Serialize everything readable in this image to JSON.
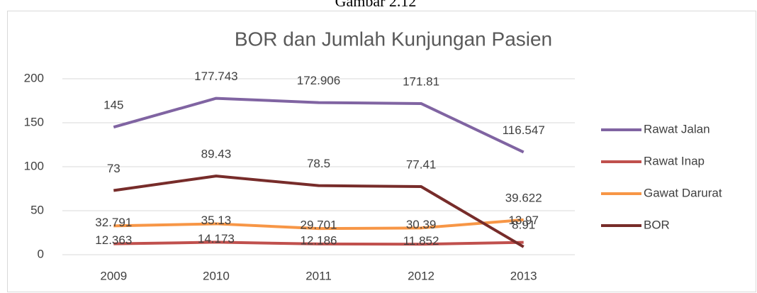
{
  "caption": "Gambar 2.12",
  "chart_data": {
    "type": "line",
    "title": "BOR dan Jumlah Kunjungan Pasien",
    "categories": [
      "2009",
      "2010",
      "2011",
      "2012",
      "2013"
    ],
    "series": [
      {
        "name": "Rawat Jalan",
        "color": "#8064a2",
        "values": [
          145,
          177.743,
          172.906,
          171.81,
          116.547
        ]
      },
      {
        "name": "Rawat Inap",
        "color": "#c0504d",
        "values": [
          12.363,
          14.173,
          12.186,
          11.852,
          13.97
        ]
      },
      {
        "name": "Gawat Darurat",
        "color": "#f79646",
        "values": [
          32.791,
          35.13,
          29.701,
          30.39,
          39.622
        ]
      },
      {
        "name": "BOR",
        "color": "#772c2a",
        "values": [
          73,
          89.43,
          78.5,
          77.41,
          8.91
        ]
      }
    ],
    "ylim": [
      0,
      200
    ],
    "yticks": [
      0,
      50,
      100,
      150,
      200
    ],
    "grid": true,
    "legend": "right"
  }
}
